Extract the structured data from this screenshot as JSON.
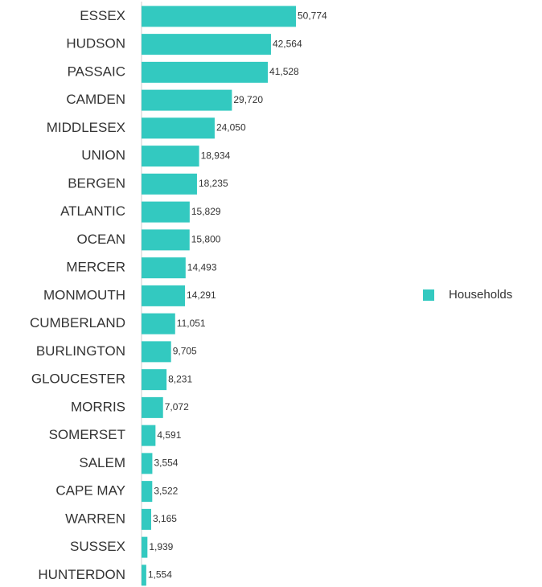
{
  "chart_data": {
    "type": "bar",
    "orientation": "horizontal",
    "categories": [
      "ESSEX",
      "HUDSON",
      "PASSAIC",
      "CAMDEN",
      "MIDDLESEX",
      "UNION",
      "BERGEN",
      "ATLANTIC",
      "OCEAN",
      "MERCER",
      "MONMOUTH",
      "CUMBERLAND",
      "BURLINGTON",
      "GLOUCESTER",
      "MORRIS",
      "SOMERSET",
      "SALEM",
      "CAPE MAY",
      "WARREN",
      "SUSSEX",
      "HUNTERDON"
    ],
    "series": [
      {
        "name": "Households",
        "color": "#33c9c0",
        "values": [
          50774,
          42564,
          41528,
          29720,
          24050,
          18934,
          18235,
          15829,
          15800,
          14493,
          14291,
          11051,
          9705,
          8231,
          7072,
          4591,
          3554,
          3522,
          3165,
          1939,
          1554
        ],
        "value_labels": [
          "50,774",
          "42,564",
          "41,528",
          "29,720",
          "24,050",
          "18,934",
          "18,235",
          "15,829",
          "15,800",
          "14,493",
          "14,291",
          "11,051",
          "9,705",
          "8,231",
          "7,072",
          "4,591",
          "3,554",
          "3,522",
          "3,165",
          "1,939",
          "1,554"
        ]
      }
    ],
    "legend": "right"
  }
}
